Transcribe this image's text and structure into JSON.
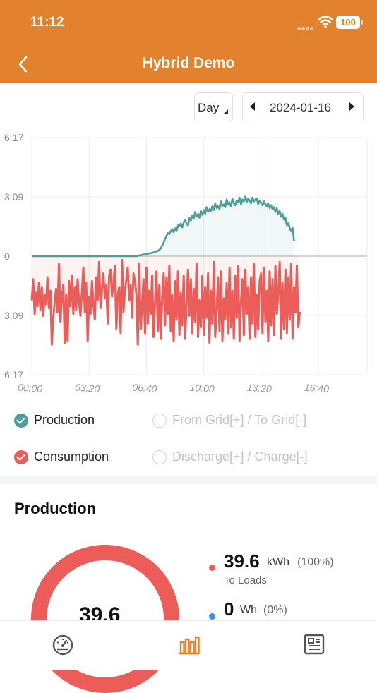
{
  "status_bar": {
    "time": "11:12",
    "battery": "100"
  },
  "header": {
    "title": "Hybrid Demo",
    "back_icon": "chevron-left-icon"
  },
  "controls": {
    "period": "Day",
    "date": "2024-01-16"
  },
  "colors": {
    "accent": "#E2812E",
    "production": "#4D9F98",
    "consumption": "#EC5C58",
    "to_grid": "#3E8DE8"
  },
  "chart_data": {
    "type": "line",
    "x_tick_labels": [
      "00:00",
      "03:20",
      "06:40",
      "10:00",
      "13:20",
      "16:40"
    ],
    "y_tick_labels": [
      "6.17",
      "3.09",
      "0",
      "3.09",
      "6.17"
    ],
    "ylim": [
      -6.17,
      6.17
    ],
    "xlim_hours": [
      0,
      19.5
    ],
    "series": [
      {
        "name": "Production",
        "sample_interval_minutes": 5,
        "start_time": "00:00",
        "values": [
          0,
          0,
          0,
          0,
          0,
          0,
          0,
          0,
          0,
          0,
          0,
          0,
          0,
          0,
          0,
          0,
          0,
          0,
          0,
          0,
          0,
          0,
          0,
          0,
          0,
          0,
          0,
          0,
          0,
          0,
          0,
          0,
          0,
          0,
          0,
          0,
          0,
          0,
          0,
          0,
          0,
          0,
          0,
          0,
          0,
          0,
          0,
          0,
          0,
          0,
          0,
          0,
          0,
          0,
          0,
          0,
          0,
          0,
          0,
          0,
          0,
          0,
          0,
          0,
          0,
          0,
          0,
          0,
          0,
          0,
          0,
          0,
          0,
          0,
          0.02,
          0.04,
          0.05,
          0.07,
          0.09,
          0.1,
          0.11,
          0.13,
          0.14,
          0.16,
          0.17,
          0.2,
          0.22,
          0.25,
          0.28,
          0.33,
          0.4,
          0.55,
          0.7,
          0.9,
          1.05,
          1.2,
          1.15,
          1.3,
          1.4,
          1.25,
          1.45,
          1.3,
          1.6,
          1.55,
          1.7,
          1.5,
          1.75,
          1.9,
          1.7,
          1.6,
          2.0,
          1.85,
          2.1,
          1.95,
          2.3,
          2.05,
          2.2,
          2.0,
          2.35,
          2.15,
          2.4,
          2.2,
          2.55,
          2.3,
          2.45,
          2.35,
          2.6,
          2.4,
          2.75,
          2.5,
          2.6,
          2.45,
          2.85,
          2.6,
          2.7,
          2.55,
          2.95,
          2.7,
          2.8,
          2.6,
          3.0,
          2.75,
          2.65,
          2.9,
          2.8,
          3.05,
          2.7,
          2.95,
          2.85,
          3.1,
          2.8,
          3.0,
          2.9,
          2.75,
          3.05,
          2.85,
          2.95,
          3.0,
          2.7,
          2.9,
          2.8,
          2.65,
          2.85,
          2.7,
          2.6,
          2.75,
          2.5,
          2.65,
          2.45,
          2.55,
          2.3,
          2.5,
          2.2,
          2.35,
          2.05,
          2.2,
          1.9,
          2.0,
          1.6,
          1.75,
          1.45,
          1.3,
          1.5,
          0.8
        ],
        "color": "#4D9F98"
      },
      {
        "name": "Consumption",
        "sample_interval_minutes": 5,
        "start_time": "00:00",
        "values": [
          -2.3,
          -1.2,
          -3.0,
          -1.9,
          -2.6,
          -1.4,
          -2.8,
          -1.6,
          -3.1,
          -2.0,
          -2.5,
          -1.1,
          -2.7,
          -1.8,
          -4.6,
          -3.2,
          -2.4,
          -1.7,
          -2.9,
          -0.4,
          -3.4,
          -2.2,
          -1.5,
          -4.5,
          -2.0,
          -4.4,
          -1.3,
          -2.6,
          -1.0,
          -3.0,
          -1.6,
          -2.8,
          -1.2,
          -2.4,
          -3.1,
          -1.9,
          -0.6,
          -2.9,
          -1.4,
          -4.4,
          -2.1,
          -3.0,
          -1.3,
          -2.5,
          -3.3,
          -1.1,
          -2.3,
          -0.3,
          -2.7,
          -1.7,
          -0.9,
          -2.2,
          -1.5,
          -3.5,
          -1.0,
          -0.7,
          -2.1,
          -1.4,
          -0.5,
          -3.8,
          -2.0,
          -1.6,
          -4.0,
          -0.2,
          -2.9,
          -1.8,
          -1.2,
          -0.6,
          -2.3,
          -1.5,
          -3.2,
          -0.9,
          -1.3,
          -2.0,
          -4.6,
          -0.4,
          -3.8,
          -2.5,
          -1.2,
          -4.0,
          -0.6,
          -3.5,
          -1.8,
          -3.0,
          -1.0,
          -4.2,
          -2.4,
          -0.8,
          -3.9,
          -1.5,
          -4.3,
          -2.2,
          -0.9,
          -3.6,
          -1.1,
          -3.0,
          -0.5,
          -3.9,
          -2.0,
          -4.4,
          -1.3,
          -3.3,
          -0.8,
          -4.1,
          -1.9,
          -3.6,
          -1.0,
          -4.3,
          -2.6,
          -0.7,
          -3.1,
          -1.2,
          -4.0,
          -1.7,
          -3.4,
          -0.4,
          -4.2,
          -2.3,
          -3.7,
          -1.0,
          -4.1,
          -1.6,
          -3.2,
          -0.9,
          -4.5,
          -1.8,
          -3.5,
          -0.3,
          -4.2,
          -2.8,
          -1.1,
          -3.9,
          -0.8,
          -4.4,
          -2.2,
          -3.3,
          -1.4,
          -4.0,
          -0.6,
          -3.7,
          -1.8,
          -4.3,
          -1.0,
          -3.2,
          -0.5,
          -4.4,
          -2.4,
          -1.2,
          -4.1,
          -0.7,
          -3.0,
          -1.6,
          -4.3,
          -1.1,
          -3.5,
          -0.4,
          -4.2,
          -2.0,
          -3.8,
          -1.3,
          -0.9,
          -4.0,
          -0.6,
          -3.4,
          -1.8,
          -4.4,
          -0.8,
          -3.6,
          -1.2,
          -4.1,
          -0.5,
          -3.0,
          -1.9,
          -0.3,
          -4.3,
          -1.4,
          -3.8,
          -0.7,
          -4.0,
          -1.1,
          -3.3,
          -0.4,
          -4.3,
          -1.6,
          -2.9,
          -0.5,
          -3.7,
          -2.9
        ],
        "color": "#EC5C58"
      }
    ],
    "legend": [
      {
        "label": "Production",
        "checked": true,
        "color": "#4D9F98"
      },
      {
        "label": "From Grid[+] / To Grid[-]",
        "checked": false
      },
      {
        "label": "Consumption",
        "checked": true,
        "color": "#EC5C58"
      },
      {
        "label": "Discharge[+] / Charge[-]",
        "checked": false
      }
    ],
    "grid": true
  },
  "production": {
    "title": "Production",
    "ring_value": "39.6",
    "stats": [
      {
        "value": "39.6",
        "unit": "kWh",
        "percent": "(100%)",
        "label": "To Loads",
        "color": "#EC5C58"
      },
      {
        "value": "0",
        "unit": "Wh",
        "percent": "(0%)",
        "label": "",
        "color": "#3E8DE8"
      }
    ]
  },
  "tabbar": {
    "items": [
      {
        "icon": "gauge-icon",
        "active": false
      },
      {
        "icon": "bar-chart-icon",
        "active": true
      },
      {
        "icon": "report-icon",
        "active": false
      }
    ]
  }
}
